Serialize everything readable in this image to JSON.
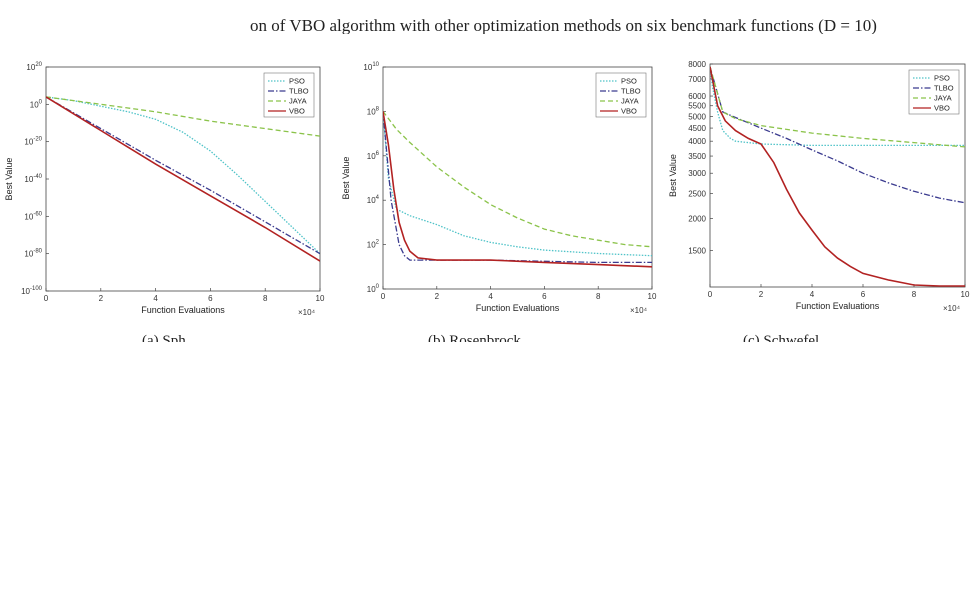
{
  "figure": {
    "top_caption": "on of VBO algorithm with other optimization methods on six benchmark functions (D = 10)",
    "sub_captions": [
      "(a) Sph",
      "(b) Rosenbrock",
      "(c) Schwefel"
    ]
  },
  "chart_data": [
    {
      "type": "line",
      "xlabel": "Function Evaluations",
      "ylabel": "Best Value",
      "x_multiplier": "×10⁴",
      "y_scale": "log",
      "xlim": [
        0,
        10
      ],
      "ylim_exp": [
        -100,
        20
      ],
      "x_ticks": [
        "0",
        "2",
        "4",
        "6",
        "8",
        "10"
      ],
      "y_ticks": [
        {
          "base": "10",
          "exp": "20"
        },
        {
          "base": "10",
          "exp": "0"
        },
        {
          "base": "10",
          "exp": "-20"
        },
        {
          "base": "10",
          "exp": "-40"
        },
        {
          "base": "10",
          "exp": "-60"
        },
        {
          "base": "10",
          "exp": "-80"
        },
        {
          "base": "10",
          "exp": "-100"
        }
      ],
      "y_tick_values": [
        20,
        0,
        -20,
        -40,
        -60,
        -80,
        -100
      ],
      "legend": "top-right",
      "series": [
        {
          "name": "PSO",
          "x": [
            0,
            1,
            2,
            3,
            4,
            5,
            6,
            7,
            8,
            9,
            10
          ],
          "y": [
            4,
            2,
            -1,
            -4,
            -8,
            -15,
            -25,
            -38,
            -52,
            -66,
            -80
          ]
        },
        {
          "name": "TLBO",
          "x": [
            0,
            2,
            4,
            6,
            8,
            10
          ],
          "y": [
            4,
            -13,
            -30,
            -46,
            -63,
            -80
          ]
        },
        {
          "name": "JAYA",
          "x": [
            0,
            2,
            4,
            6,
            8,
            10
          ],
          "y": [
            4,
            0,
            -4,
            -9,
            -13,
            -17
          ]
        },
        {
          "name": "VBO",
          "x": [
            0,
            2,
            4,
            6,
            8,
            10
          ],
          "y": [
            4,
            -14,
            -32,
            -49,
            -66,
            -84
          ]
        }
      ]
    },
    {
      "type": "line",
      "xlabel": "Function Evaluations",
      "ylabel": "Best Value",
      "x_multiplier": "×10⁴",
      "y_scale": "log",
      "xlim": [
        0,
        10
      ],
      "ylim_exp": [
        0,
        10
      ],
      "x_ticks": [
        "0",
        "2",
        "4",
        "6",
        "8",
        "10"
      ],
      "y_ticks": [
        {
          "base": "10",
          "exp": "10"
        },
        {
          "base": "10",
          "exp": "8"
        },
        {
          "base": "10",
          "exp": "6"
        },
        {
          "base": "10",
          "exp": "4"
        },
        {
          "base": "10",
          "exp": "2"
        },
        {
          "base": "10",
          "exp": "0"
        }
      ],
      "y_tick_values": [
        10,
        8,
        6,
        4,
        2,
        0
      ],
      "legend": "top-right",
      "series": [
        {
          "name": "PSO",
          "x": [
            0,
            0.2,
            0.5,
            1,
            2,
            3,
            4,
            5,
            6,
            8,
            10
          ],
          "y": [
            8,
            5,
            3.6,
            3.3,
            2.9,
            2.4,
            2.1,
            1.9,
            1.75,
            1.6,
            1.5
          ]
        },
        {
          "name": "TLBO",
          "x": [
            0,
            0.3,
            0.6,
            0.8,
            1,
            2,
            4,
            6,
            8,
            10
          ],
          "y": [
            8,
            4,
            2,
            1.5,
            1.3,
            1.3,
            1.3,
            1.25,
            1.2,
            1.2
          ]
        },
        {
          "name": "JAYA",
          "x": [
            0,
            0.5,
            1,
            2,
            3,
            4,
            5,
            6,
            7,
            8,
            9,
            10
          ],
          "y": [
            8,
            7.2,
            6.6,
            5.5,
            4.6,
            3.8,
            3.2,
            2.7,
            2.4,
            2.2,
            2.0,
            1.9
          ]
        },
        {
          "name": "VBO",
          "x": [
            0,
            0.2,
            0.4,
            0.6,
            0.8,
            1,
            1.3,
            2,
            4,
            6,
            8,
            10
          ],
          "y": [
            8,
            6.5,
            4.5,
            3,
            2.2,
            1.7,
            1.4,
            1.3,
            1.3,
            1.2,
            1.1,
            1.0
          ]
        }
      ]
    },
    {
      "type": "line",
      "xlabel": "Function Evaluations",
      "ylabel": "Best Value",
      "x_multiplier": "×10⁴",
      "y_scale": "log",
      "xlim": [
        0,
        10
      ],
      "ylim": [
        1080,
        8000
      ],
      "x_ticks": [
        "0",
        "2",
        "4",
        "6",
        "8",
        "10"
      ],
      "y_ticks": [
        "8000",
        "7000",
        "6000",
        "5500",
        "5000",
        "4500",
        "4000",
        "3500",
        "3000",
        "2500",
        "2000",
        "1500"
      ],
      "y_tick_values": [
        8000,
        7000,
        6000,
        5500,
        5000,
        4500,
        4000,
        3500,
        3000,
        2500,
        2000,
        1500
      ],
      "legend": "top-right",
      "series": [
        {
          "name": "PSO",
          "x": [
            0,
            0.1,
            0.3,
            0.5,
            0.8,
            1,
            2,
            4,
            6,
            8,
            10
          ],
          "y": [
            7800,
            6500,
            5200,
            4400,
            4100,
            4000,
            3900,
            3850,
            3850,
            3850,
            3850
          ]
        },
        {
          "name": "TLBO",
          "x": [
            0,
            0.5,
            1,
            2,
            3,
            4,
            5,
            6,
            7,
            8,
            9,
            10
          ],
          "y": [
            7800,
            5200,
            4950,
            4500,
            4100,
            3700,
            3350,
            3000,
            2750,
            2550,
            2400,
            2300
          ]
        },
        {
          "name": "JAYA",
          "x": [
            0,
            0.5,
            1,
            2,
            4,
            6,
            8,
            10
          ],
          "y": [
            7800,
            5200,
            4900,
            4600,
            4300,
            4100,
            3950,
            3800
          ]
        },
        {
          "name": "VBO",
          "x": [
            0,
            0.3,
            0.6,
            1,
            1.5,
            2,
            2.5,
            3,
            3.5,
            4,
            4.5,
            5,
            5.5,
            6,
            7,
            8,
            9,
            10
          ],
          "y": [
            7800,
            5500,
            4800,
            4400,
            4100,
            3900,
            3300,
            2600,
            2100,
            1800,
            1550,
            1400,
            1300,
            1220,
            1150,
            1100,
            1090,
            1090
          ]
        }
      ]
    }
  ],
  "style": {
    "colors": {
      "PSO": "#4fc3c8",
      "TLBO": "#3b3b8f",
      "JAYA": "#8bc34a",
      "VBO": "#b22222"
    },
    "dashes": {
      "PSO": "1.5,1.5",
      "TLBO": "6,2,1.5,2",
      "JAYA": "5,3",
      "VBO": ""
    }
  }
}
